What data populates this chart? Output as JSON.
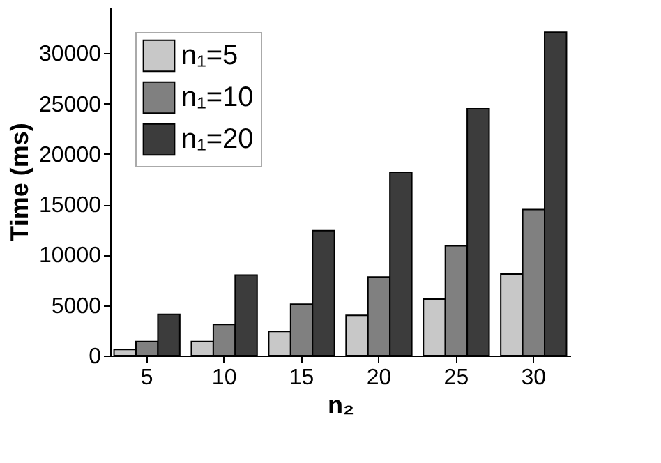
{
  "chart_data": {
    "type": "bar",
    "xlabel": "n₂",
    "ylabel": "Time (ms)",
    "categories": [
      "5",
      "10",
      "15",
      "20",
      "25",
      "30"
    ],
    "series": [
      {
        "name": "n₁=5",
        "color": "#c8c8c8",
        "values": [
          600,
          1400,
          2400,
          4000,
          5600,
          8100
        ]
      },
      {
        "name": "n₁=10",
        "color": "#808080",
        "values": [
          1400,
          3100,
          5100,
          7800,
          10900,
          14500
        ]
      },
      {
        "name": "n₁=20",
        "color": "#3c3c3c",
        "values": [
          4100,
          8000,
          12400,
          18200,
          24500,
          32100
        ]
      }
    ],
    "ylim": [
      0,
      34600
    ],
    "yticks": [
      0,
      5000,
      10000,
      15000,
      20000,
      25000,
      30000
    ],
    "grid": false,
    "legend": "top left"
  }
}
